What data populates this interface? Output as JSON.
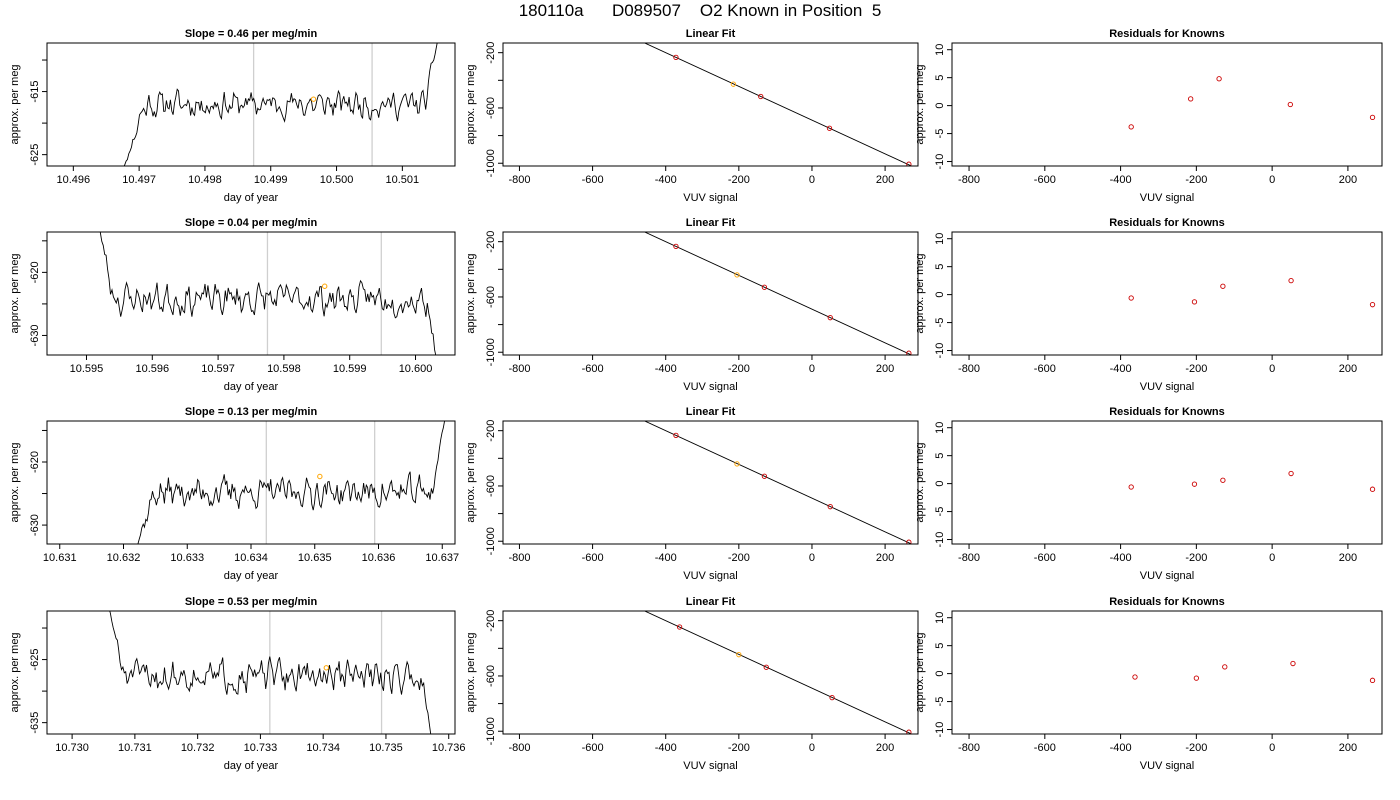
{
  "page_title": "180110a      D089507    O2 Known in Position  5",
  "colors": {
    "trace": "#000000",
    "fit_line": "#000000",
    "vline": "#cfcfcf",
    "marker": "#ffa500",
    "points": "#cc0000",
    "axis": "#000000"
  },
  "chart_data": [
    {
      "type": "line",
      "title": "Slope =  0.46  per meg/min",
      "xlabel": "day of year",
      "ylabel": "approx. per meg",
      "xlim": [
        10.4956,
        10.5018
      ],
      "ylim": [
        -626.8,
        -607.3
      ],
      "xticks": [
        10.496,
        10.497,
        10.498,
        10.499,
        10.5,
        10.501
      ],
      "xtick_labels": [
        "10.496",
        "10.497",
        "10.498",
        "10.499",
        "10.500",
        "10.501"
      ],
      "yticks": [
        -625,
        -620,
        -615,
        -610
      ],
      "ytick_labels": [
        "-625",
        "",
        "-615",
        ""
      ],
      "seg": [
        10.4967,
        10.5016
      ],
      "trace_base": -617.0,
      "trace_amp": 1.7,
      "rise_start": -627.5,
      "rise_end": -605.5,
      "seed": 11,
      "vlines": [
        10.49874,
        10.50054
      ],
      "marker": {
        "x": 10.49965,
        "y": -616.2
      }
    },
    {
      "type": "scatter",
      "title": "Linear Fit",
      "xlabel": "VUV signal",
      "ylabel": "approx. per meg",
      "xlim": [
        -845,
        290
      ],
      "ylim": [
        -1020,
        -130
      ],
      "xticks": [
        -800,
        -600,
        -400,
        -200,
        0,
        200
      ],
      "xtick_labels": [
        "-800",
        "-600",
        "-400",
        "-200",
        "0",
        "200"
      ],
      "yticks": [
        -1000,
        -800,
        -600,
        -400,
        -200
      ],
      "ytick_labels": [
        "-1000",
        "",
        "-600",
        "",
        "-200"
      ],
      "fit": {
        "slope": -1.22,
        "intercept": -688
      },
      "points": [
        [
          -372,
          -234
        ],
        [
          -215,
          -428
        ],
        [
          -140,
          -517
        ],
        [
          48,
          -747
        ],
        [
          265,
          -1007
        ]
      ],
      "marker_index": 1
    },
    {
      "type": "scatter",
      "title": "Residuals for Knowns",
      "xlabel": "VUV signal",
      "ylabel": "approx. per meg",
      "xlim": [
        -845,
        290
      ],
      "ylim": [
        -10.8,
        11.2
      ],
      "xticks": [
        -800,
        -600,
        -400,
        -200,
        0,
        200
      ],
      "xtick_labels": [
        "-800",
        "-600",
        "-400",
        "-200",
        "0",
        "200"
      ],
      "yticks": [
        -10,
        -5,
        0,
        5,
        10
      ],
      "ytick_labels": [
        "-10",
        "-5",
        "0",
        "5",
        "10"
      ],
      "points": [
        [
          -372,
          -3.8
        ],
        [
          -215,
          1.2
        ],
        [
          -140,
          4.8
        ],
        [
          48,
          0.2
        ],
        [
          265,
          -2.1
        ]
      ]
    },
    {
      "type": "line",
      "title": "Slope =  0.04  per meg/min",
      "xlabel": "day of year",
      "ylabel": "approx. per meg",
      "xlim": [
        10.5944,
        10.6006
      ],
      "ylim": [
        -633.1,
        -613.6
      ],
      "xticks": [
        10.595,
        10.596,
        10.597,
        10.598,
        10.599,
        10.6
      ],
      "xtick_labels": [
        "10.595",
        "10.596",
        "10.597",
        "10.598",
        "10.599",
        "10.600"
      ],
      "yticks": [
        -630,
        -625,
        -620,
        -615
      ],
      "ytick_labels": [
        "-630",
        "",
        "-620",
        ""
      ],
      "seg": [
        10.5951,
        10.6004
      ],
      "trace_base": -624.2,
      "trace_amp": 2.0,
      "fall_start": -611.0,
      "fall_end": -636.0,
      "seed": 23,
      "vlines": [
        10.59775,
        10.59948
      ],
      "marker": {
        "x": 10.59862,
        "y": -622.2
      }
    },
    {
      "type": "scatter",
      "title": "Linear Fit",
      "xlabel": "VUV signal",
      "ylabel": "approx. per meg",
      "xlim": [
        -845,
        290
      ],
      "ylim": [
        -1020,
        -130
      ],
      "xticks": [
        -800,
        -600,
        -400,
        -200,
        0,
        200
      ],
      "xtick_labels": [
        "-800",
        "-600",
        "-400",
        "-200",
        "0",
        "200"
      ],
      "yticks": [
        -1000,
        -800,
        -600,
        -400,
        -200
      ],
      "ytick_labels": [
        "-1000",
        "",
        "-600",
        "",
        "-200"
      ],
      "fit": {
        "slope": -1.22,
        "intercept": -688
      },
      "points": [
        [
          -372,
          -234
        ],
        [
          -205,
          -440
        ],
        [
          -130,
          -530
        ],
        [
          50,
          -750
        ],
        [
          265,
          -1007
        ]
      ],
      "marker_index": 1
    },
    {
      "type": "scatter",
      "title": "Residuals for Knowns",
      "xlabel": "VUV signal",
      "ylabel": "approx. per meg",
      "xlim": [
        -845,
        290
      ],
      "ylim": [
        -10.8,
        11.2
      ],
      "xticks": [
        -800,
        -600,
        -400,
        -200,
        0,
        200
      ],
      "xtick_labels": [
        "-800",
        "-600",
        "-400",
        "-200",
        "0",
        "200"
      ],
      "yticks": [
        -10,
        -5,
        0,
        5,
        10
      ],
      "ytick_labels": [
        "-10",
        "-5",
        "0",
        "5",
        "10"
      ],
      "points": [
        [
          -372,
          -0.6
        ],
        [
          -205,
          -1.3
        ],
        [
          -130,
          1.5
        ],
        [
          50,
          2.5
        ],
        [
          265,
          -1.8
        ]
      ]
    },
    {
      "type": "line",
      "title": "Slope =  0.13  per meg/min",
      "xlabel": "day of year",
      "ylabel": "approx. per meg",
      "xlim": [
        10.6308,
        10.6372
      ],
      "ylim": [
        -633.0,
        -613.5
      ],
      "xticks": [
        10.631,
        10.632,
        10.633,
        10.634,
        10.635,
        10.636,
        10.637
      ],
      "xtick_labels": [
        "10.631",
        "10.632",
        "10.633",
        "10.634",
        "10.635",
        "10.636",
        "10.637"
      ],
      "yticks": [
        -630,
        -625,
        -620,
        -615
      ],
      "ytick_labels": [
        "-630",
        "",
        "-620",
        ""
      ],
      "seg": [
        10.6321,
        10.6371
      ],
      "trace_base": -624.8,
      "trace_amp": 1.9,
      "rise_start": -634.5,
      "rise_end": -612.0,
      "seed": 37,
      "vlines": [
        10.63424,
        10.63594
      ],
      "marker": {
        "x": 10.63508,
        "y": -622.3
      }
    },
    {
      "type": "scatter",
      "title": "Linear Fit",
      "xlabel": "VUV signal",
      "ylabel": "approx. per meg",
      "xlim": [
        -845,
        290
      ],
      "ylim": [
        -1020,
        -130
      ],
      "xticks": [
        -800,
        -600,
        -400,
        -200,
        0,
        200
      ],
      "xtick_labels": [
        "-800",
        "-600",
        "-400",
        "-200",
        "0",
        "200"
      ],
      "yticks": [
        -1000,
        -800,
        -600,
        -400,
        -200
      ],
      "ytick_labels": [
        "-1000",
        "",
        "-600",
        "",
        "-200"
      ],
      "fit": {
        "slope": -1.22,
        "intercept": -688
      },
      "points": [
        [
          -372,
          -234
        ],
        [
          -205,
          -440
        ],
        [
          -130,
          -530
        ],
        [
          50,
          -750
        ],
        [
          265,
          -1007
        ]
      ],
      "marker_index": 1
    },
    {
      "type": "scatter",
      "title": "Residuals for Knowns",
      "xlabel": "VUV signal",
      "ylabel": "approx. per meg",
      "xlim": [
        -845,
        290
      ],
      "ylim": [
        -10.8,
        11.2
      ],
      "xticks": [
        -800,
        -600,
        -400,
        -200,
        0,
        200
      ],
      "xtick_labels": [
        "-800",
        "-600",
        "-400",
        "-200",
        "0",
        "200"
      ],
      "yticks": [
        -10,
        -5,
        0,
        5,
        10
      ],
      "ytick_labels": [
        "-10",
        "-5",
        "0",
        "5",
        "10"
      ],
      "points": [
        [
          -372,
          -0.6
        ],
        [
          -205,
          -0.1
        ],
        [
          -130,
          0.6
        ],
        [
          50,
          1.8
        ],
        [
          265,
          -1.0
        ]
      ]
    },
    {
      "type": "line",
      "title": "Slope =  0.53  per meg/min",
      "xlabel": "day of year",
      "ylabel": "approx. per meg",
      "xlim": [
        10.7296,
        10.7361
      ],
      "ylim": [
        -636.8,
        -617.3
      ],
      "xticks": [
        10.73,
        10.731,
        10.732,
        10.733,
        10.734,
        10.735,
        10.736
      ],
      "xtick_labels": [
        "10.730",
        "10.731",
        "10.732",
        "10.733",
        "10.734",
        "10.735",
        "10.736"
      ],
      "yticks": [
        -635,
        -630,
        -625,
        -620
      ],
      "ytick_labels": [
        "-635",
        "",
        "-625",
        ""
      ],
      "seg": [
        10.7305,
        10.7358
      ],
      "trace_base": -627.6,
      "trace_amp": 2.0,
      "fall_start": -615.0,
      "fall_end": -639.0,
      "seed": 51,
      "vlines": [
        10.73315,
        10.73493
      ],
      "marker": {
        "x": 10.73405,
        "y": -626.3
      }
    },
    {
      "type": "scatter",
      "title": "Linear Fit",
      "xlabel": "VUV signal",
      "ylabel": "approx. per meg",
      "xlim": [
        -845,
        290
      ],
      "ylim": [
        -1020,
        -130
      ],
      "xticks": [
        -800,
        -600,
        -400,
        -200,
        0,
        200
      ],
      "xtick_labels": [
        "-800",
        "-600",
        "-400",
        "-200",
        "0",
        "200"
      ],
      "yticks": [
        -1000,
        -800,
        -600,
        -400,
        -200
      ],
      "ytick_labels": [
        "-1000",
        "",
        "-600",
        "",
        "-200"
      ],
      "fit": {
        "slope": -1.22,
        "intercept": -688
      },
      "points": [
        [
          -362,
          -246
        ],
        [
          -200,
          -446
        ],
        [
          -125,
          -537
        ],
        [
          55,
          -757
        ],
        [
          265,
          -1007
        ]
      ],
      "marker_index": 1
    },
    {
      "type": "scatter",
      "title": "Residuals for Knowns",
      "xlabel": "VUV signal",
      "ylabel": "approx. per meg",
      "xlim": [
        -845,
        290
      ],
      "ylim": [
        -10.8,
        11.2
      ],
      "xticks": [
        -800,
        -600,
        -400,
        -200,
        0,
        200
      ],
      "xtick_labels": [
        "-800",
        "-600",
        "-400",
        "-200",
        "0",
        "200"
      ],
      "yticks": [
        -10,
        -5,
        0,
        5,
        10
      ],
      "ytick_labels": [
        "-10",
        "-5",
        "0",
        "5",
        "10"
      ],
      "points": [
        [
          -362,
          -0.6
        ],
        [
          -200,
          -0.8
        ],
        [
          -125,
          1.2
        ],
        [
          55,
          1.8
        ],
        [
          265,
          -1.2
        ]
      ]
    }
  ]
}
